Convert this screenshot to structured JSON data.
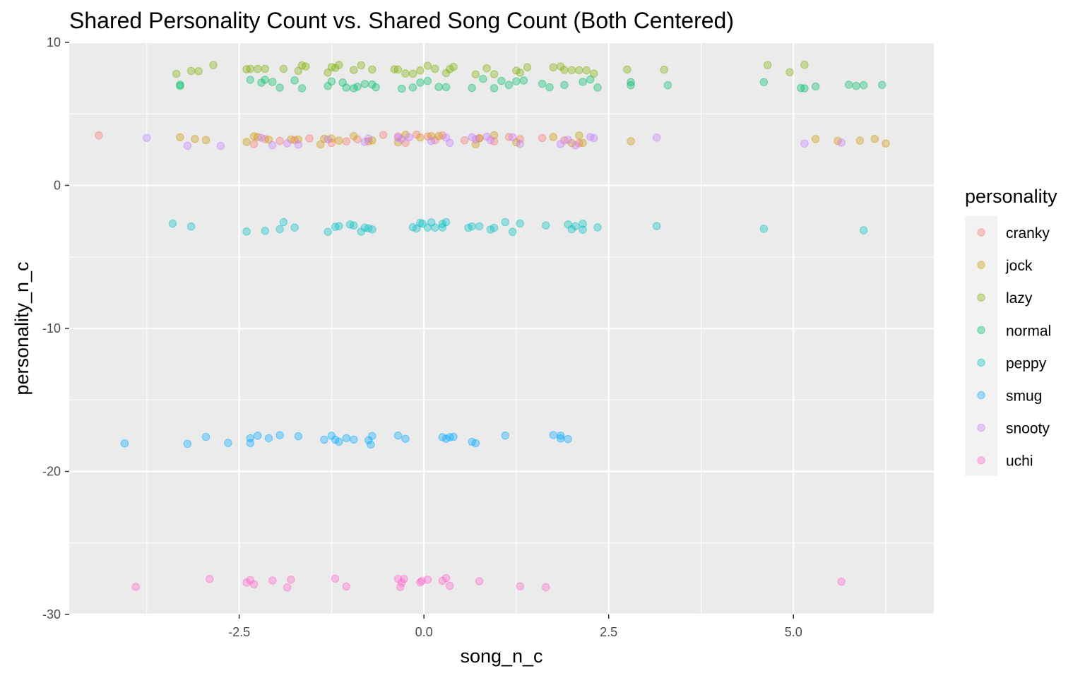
{
  "chart_data": {
    "type": "scatter",
    "title": "Shared Personality Count vs. Shared Song Count (Both Centered)",
    "xlabel": "song_n_c",
    "ylabel": "personality_n_c",
    "xlim": [
      -4.8,
      6.9
    ],
    "ylim": [
      -30,
      10
    ],
    "x_ticks": [
      -2.5,
      0.0,
      2.5,
      5.0
    ],
    "x_tick_labels": [
      "-2.5",
      "0.0",
      "2.5",
      "5.0"
    ],
    "y_ticks": [
      -30,
      -20,
      -10,
      0,
      10
    ],
    "y_tick_labels": [
      "-30",
      "-20",
      "-10",
      "0",
      "10"
    ],
    "grid": true,
    "point_opacity": 0.35,
    "legend": {
      "title": "personality",
      "placement": "right"
    },
    "series": [
      {
        "name": "cranky",
        "color": "#F8766D",
        "y_center": 3.2,
        "jitter": 0.35,
        "x": [
          -4.4,
          -2.3,
          -2.15,
          -1.95,
          -1.75,
          -1.55,
          -1.25,
          -1.05,
          -0.9,
          -0.55,
          -0.35,
          -0.25,
          -0.1,
          0.05,
          0.15,
          0.25,
          0.55,
          0.75,
          0.95,
          1.15,
          1.3,
          1.6,
          1.9,
          2.1
        ]
      },
      {
        "name": "jock",
        "color": "#CD9600",
        "y_center": 3.2,
        "jitter": 0.35,
        "x": [
          -3.3,
          -3.1,
          -2.95,
          -2.4,
          -2.3,
          -2.25,
          -2.1,
          -1.8,
          -1.7,
          -1.4,
          -1.35,
          -1.25,
          -1.15,
          -0.95,
          -0.75,
          -0.7,
          -0.35,
          -0.25,
          -0.05,
          0.1,
          0.2,
          0.7,
          0.75,
          0.95,
          1.25,
          1.75,
          2.0,
          2.1,
          2.15,
          2.8,
          5.3,
          5.6,
          5.9,
          6.1,
          6.25
        ]
      },
      {
        "name": "lazy",
        "color": "#7CAE00",
        "y_center": 8.1,
        "jitter": 0.35,
        "x": [
          -3.35,
          -3.15,
          -3.05,
          -2.85,
          -2.4,
          -2.35,
          -2.25,
          -2.15,
          -1.9,
          -1.7,
          -1.65,
          -1.6,
          -1.3,
          -1.25,
          -1.2,
          -1.15,
          -0.95,
          -0.85,
          -0.7,
          -0.4,
          -0.35,
          -0.25,
          -0.15,
          -0.05,
          0.05,
          0.15,
          0.3,
          0.35,
          0.4,
          0.7,
          0.85,
          0.95,
          1.25,
          1.3,
          1.4,
          1.75,
          1.85,
          1.9,
          2.0,
          2.1,
          2.2,
          2.3,
          2.75,
          3.25,
          4.65,
          4.95,
          5.15
        ]
      },
      {
        "name": "normal",
        "color": "#00BE67",
        "y_center": 7.1,
        "jitter": 0.35,
        "x": [
          -3.3,
          -3.3,
          -2.35,
          -2.2,
          -2.15,
          -2.05,
          -1.95,
          -1.75,
          -1.65,
          -1.3,
          -1.25,
          -1.1,
          -1.05,
          -0.95,
          -0.9,
          -0.8,
          -0.7,
          -0.65,
          -0.3,
          -0.15,
          -0.05,
          0.05,
          0.2,
          0.3,
          0.65,
          0.8,
          0.95,
          1.05,
          1.15,
          1.25,
          1.35,
          1.6,
          1.7,
          1.9,
          2.15,
          2.25,
          2.35,
          2.8,
          2.8,
          3.3,
          4.6,
          5.1,
          5.15,
          5.3,
          5.75,
          5.85,
          5.95,
          6.2
        ]
      },
      {
        "name": "peppy",
        "color": "#00BFC4",
        "y_center": -2.9,
        "jitter": 0.35,
        "x": [
          -3.4,
          -3.15,
          -2.4,
          -2.15,
          -1.95,
          -1.9,
          -1.75,
          -1.3,
          -1.2,
          -1.15,
          -1.0,
          -0.95,
          -0.85,
          -0.8,
          -0.75,
          -0.7,
          -0.15,
          -0.1,
          -0.05,
          -0.02,
          0.05,
          0.1,
          0.15,
          0.25,
          0.25,
          0.3,
          0.6,
          0.65,
          0.75,
          0.9,
          0.95,
          1.1,
          1.2,
          1.3,
          1.65,
          1.95,
          2.0,
          2.05,
          2.15,
          2.15,
          2.35,
          3.15,
          4.6,
          5.95
        ]
      },
      {
        "name": "smug",
        "color": "#00A9FF",
        "y_center": -17.8,
        "jitter": 0.35,
        "x": [
          -4.05,
          -3.2,
          -2.95,
          -2.65,
          -2.35,
          -2.35,
          -2.25,
          -2.1,
          -1.95,
          -1.7,
          -1.35,
          -1.25,
          -1.2,
          -1.15,
          -1.05,
          -0.95,
          -0.75,
          -0.72,
          -0.7,
          -0.35,
          -0.25,
          0.25,
          0.3,
          0.35,
          0.4,
          0.65,
          0.7,
          1.1,
          1.75,
          1.85,
          1.85,
          1.95
        ]
      },
      {
        "name": "snooty",
        "color": "#C77CFF",
        "y_center": 3.1,
        "jitter": 0.35,
        "x": [
          -3.75,
          -3.2,
          -2.75,
          -2.2,
          -2.05,
          -1.85,
          -1.7,
          -1.3,
          -0.8,
          -0.75,
          -0.35,
          -0.3,
          -0.2,
          0.1,
          0.3,
          0.35,
          0.65,
          0.7,
          0.85,
          0.9,
          1.2,
          1.3,
          1.85,
          1.95,
          2.05,
          2.25,
          2.3,
          3.15,
          5.15,
          5.65
        ]
      },
      {
        "name": "uchi",
        "color": "#FF61CC",
        "y_center": -27.8,
        "jitter": 0.35,
        "x": [
          -3.9,
          -2.9,
          -2.4,
          -2.35,
          -2.3,
          -2.05,
          -1.85,
          -1.8,
          -1.2,
          -1.05,
          -0.35,
          -0.32,
          -0.3,
          -0.27,
          -0.05,
          -0.03,
          0.05,
          0.25,
          0.3,
          0.35,
          0.75,
          1.3,
          1.65,
          5.65
        ]
      }
    ]
  }
}
